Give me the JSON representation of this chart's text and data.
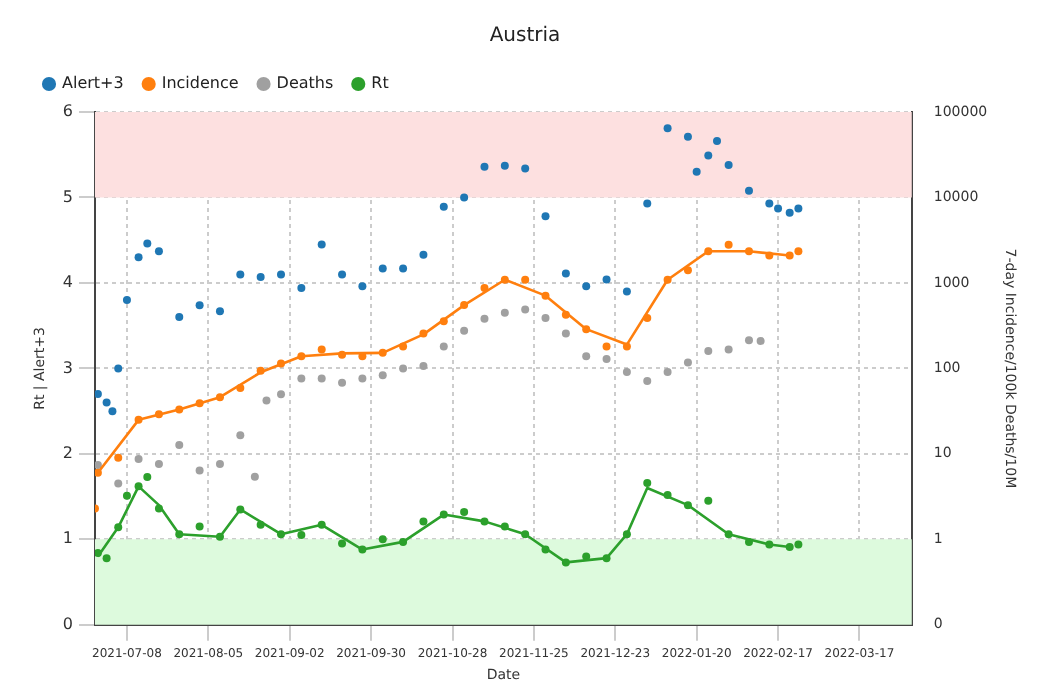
{
  "chart_data": {
    "type": "scatter",
    "title": "Austria",
    "xlabel": "Date",
    "ylabel": "Rt | Alert+3",
    "y2label": "7-day Incidence/100k Deaths/10M",
    "xlim": [
      "2021-06-27",
      "2022-04-04"
    ],
    "xticks": [
      "2021-07-08",
      "2021-08-05",
      "2021-09-02",
      "2021-09-30",
      "2021-10-28",
      "2021-11-25",
      "2021-12-23",
      "2022-01-20",
      "2022-02-17",
      "2022-03-17"
    ],
    "ylim": [
      0,
      6
    ],
    "yticks": [
      0,
      1,
      2,
      3,
      4,
      5,
      6
    ],
    "log": "y2",
    "y2lim": [
      0.1,
      100000
    ],
    "y2ticks": [
      {
        "value": 0.1,
        "label": "0"
      },
      1,
      10,
      100,
      1000,
      10000,
      100000
    ],
    "grid": true,
    "legend": "top left",
    "marker": "circle",
    "bands": [
      {
        "axis": "y",
        "from": 0,
        "to": 1,
        "color": "#ddfadd"
      },
      {
        "axis": "y",
        "from": 5,
        "to": 6,
        "color": "#fde0e0"
      }
    ],
    "series": [
      {
        "name": "Alert+3",
        "color": "#1f77b4",
        "x": [
          "2021-06-28",
          "2021-07-01",
          "2021-07-03",
          "2021-07-05",
          "2021-07-08",
          "2021-07-12",
          "2021-07-15",
          "2021-07-19",
          "2021-07-26",
          "2021-08-02",
          "2021-08-09",
          "2021-08-16",
          "2021-08-23",
          "2021-08-30",
          "2021-09-06",
          "2021-09-13",
          "2021-09-20",
          "2021-09-27",
          "2021-10-04",
          "2021-10-11",
          "2021-10-18",
          "2021-10-25",
          "2021-11-01",
          "2021-11-08",
          "2021-11-15",
          "2021-11-22",
          "2021-11-29",
          "2021-12-06",
          "2021-12-13",
          "2021-12-20",
          "2021-12-27",
          "2022-01-03",
          "2022-01-10",
          "2022-01-17",
          "2022-01-20",
          "2022-01-24",
          "2022-01-27",
          "2022-01-31",
          "2022-02-07",
          "2022-02-14",
          "2022-02-17",
          "2022-02-21",
          "2022-02-24"
        ],
        "values": [
          2.7,
          2.6,
          2.5,
          3.0,
          3.8,
          4.3,
          4.46,
          4.37,
          3.6,
          3.74,
          3.67,
          4.1,
          4.07,
          4.1,
          3.94,
          4.45,
          4.1,
          3.96,
          4.17,
          4.17,
          4.33,
          4.89,
          5.0,
          5.36,
          5.37,
          5.34,
          4.78,
          4.11,
          3.96,
          4.04,
          3.9,
          4.93,
          5.81,
          5.71,
          5.3,
          5.49,
          5.66,
          5.38,
          5.08,
          4.93,
          4.87,
          4.82,
          4.87
        ]
      },
      {
        "name": "Incidence",
        "color": "#ff7f0e",
        "axis": "y2",
        "x": [
          "2021-06-27",
          "2021-06-28",
          "2021-07-05",
          "2021-07-12",
          "2021-07-19",
          "2021-07-26",
          "2021-08-02",
          "2021-08-09",
          "2021-08-16",
          "2021-08-23",
          "2021-08-30",
          "2021-09-06",
          "2021-09-13",
          "2021-09-20",
          "2021-09-27",
          "2021-10-04",
          "2021-10-11",
          "2021-10-18",
          "2021-10-25",
          "2021-11-01",
          "2021-11-08",
          "2021-11-15",
          "2021-11-22",
          "2021-11-29",
          "2021-12-06",
          "2021-12-13",
          "2021-12-20",
          "2021-12-27",
          "2022-01-03",
          "2022-01-10",
          "2022-01-17",
          "2022-01-24",
          "2022-01-31",
          "2022-02-07",
          "2022-02-14",
          "2022-02-21",
          "2022-02-24"
        ],
        "values": [
          2.3,
          6,
          9,
          25,
          29,
          33,
          39,
          46,
          59,
          94,
          114,
          139,
          166,
          144,
          139,
          152,
          180,
          256,
          357,
          550,
          870,
          1090,
          1090,
          710,
          425,
          288,
          180,
          180,
          390,
          1090,
          1410,
          2350,
          2800,
          2350,
          2090,
          2090,
          2350
        ]
      },
      {
        "name": "Deaths",
        "color": "#a0a0a0",
        "axis": "y2",
        "x": [
          "2021-06-28",
          "2021-07-05",
          "2021-07-12",
          "2021-07-19",
          "2021-07-26",
          "2021-08-02",
          "2021-08-09",
          "2021-08-16",
          "2021-08-21",
          "2021-08-25",
          "2021-08-30",
          "2021-09-06",
          "2021-09-13",
          "2021-09-20",
          "2021-09-27",
          "2021-10-04",
          "2021-10-11",
          "2021-10-18",
          "2021-10-25",
          "2021-11-01",
          "2021-11-08",
          "2021-11-15",
          "2021-11-22",
          "2021-11-29",
          "2021-12-06",
          "2021-12-13",
          "2021-12-20",
          "2021-12-27",
          "2022-01-03",
          "2022-01-10",
          "2022-01-17",
          "2022-01-24",
          "2022-01-31",
          "2022-02-07",
          "2022-02-11"
        ],
        "values": [
          7.4,
          4.5,
          8.7,
          7.6,
          12.7,
          6.4,
          7.6,
          16.5,
          5.4,
          42,
          50,
          76,
          76,
          68,
          76,
          83,
          100,
          107,
          180,
          275,
          380,
          447,
          490,
          390,
          256,
          139,
          129,
          91,
          71,
          91,
          117,
          160,
          166,
          214,
          209
        ]
      },
      {
        "name": "Rt",
        "color": "#2ca02c",
        "x": [
          "2021-06-28",
          "2021-07-01",
          "2021-07-05",
          "2021-07-08",
          "2021-07-12",
          "2021-07-15",
          "2021-07-19",
          "2021-07-26",
          "2021-08-02",
          "2021-08-09",
          "2021-08-16",
          "2021-08-23",
          "2021-08-30",
          "2021-09-06",
          "2021-09-13",
          "2021-09-20",
          "2021-09-27",
          "2021-10-04",
          "2021-10-11",
          "2021-10-18",
          "2021-10-25",
          "2021-11-01",
          "2021-11-08",
          "2021-11-15",
          "2021-11-22",
          "2021-11-29",
          "2021-12-06",
          "2021-12-13",
          "2021-12-20",
          "2021-12-27",
          "2022-01-03",
          "2022-01-10",
          "2022-01-17",
          "2022-01-24",
          "2022-01-31",
          "2022-02-07",
          "2022-02-14",
          "2022-02-21",
          "2022-02-24"
        ],
        "values": [
          0.84,
          0.78,
          1.14,
          1.51,
          1.62,
          1.73,
          1.36,
          1.06,
          1.15,
          1.03,
          1.35,
          1.17,
          1.06,
          1.05,
          1.17,
          0.95,
          0.88,
          1.0,
          0.97,
          1.21,
          1.29,
          1.32,
          1.21,
          1.15,
          1.06,
          0.88,
          0.73,
          0.8,
          0.78,
          1.06,
          1.66,
          1.52,
          1.4,
          1.45,
          1.06,
          0.97,
          0.94,
          0.91,
          0.94
        ]
      },
      {
        "type": "line",
        "marker": "none",
        "color": "#ff7f0e",
        "axis": "y2",
        "x": [
          "2021-06-28",
          "2021-07-12",
          "2021-07-26",
          "2021-08-09",
          "2021-08-23",
          "2021-09-06",
          "2021-09-20",
          "2021-10-04",
          "2021-10-18",
          "2021-11-01",
          "2021-11-15",
          "2021-11-29",
          "2021-12-13",
          "2021-12-27",
          "2022-01-10",
          "2022-01-24",
          "2022-02-07",
          "2022-02-21"
        ],
        "values": [
          6,
          25,
          33,
          46,
          90,
          139,
          150,
          152,
          250,
          550,
          1090,
          710,
          288,
          190,
          1090,
          2350,
          2350,
          2090
        ]
      },
      {
        "type": "line",
        "marker": "none",
        "color": "#2ca02c",
        "x": [
          "2021-06-28",
          "2021-07-05",
          "2021-07-12",
          "2021-07-19",
          "2021-07-26",
          "2021-08-09",
          "2021-08-16",
          "2021-08-30",
          "2021-09-13",
          "2021-09-27",
          "2021-10-11",
          "2021-10-25",
          "2021-11-08",
          "2021-11-22",
          "2021-12-06",
          "2021-12-20",
          "2021-12-27",
          "2022-01-03",
          "2022-01-17",
          "2022-01-31",
          "2022-02-14",
          "2022-02-21"
        ],
        "values": [
          0.8,
          1.14,
          1.62,
          1.4,
          1.06,
          1.03,
          1.35,
          1.06,
          1.17,
          0.88,
          0.97,
          1.29,
          1.21,
          1.06,
          0.73,
          0.78,
          1.06,
          1.6,
          1.4,
          1.06,
          0.94,
          0.91
        ]
      }
    ]
  }
}
